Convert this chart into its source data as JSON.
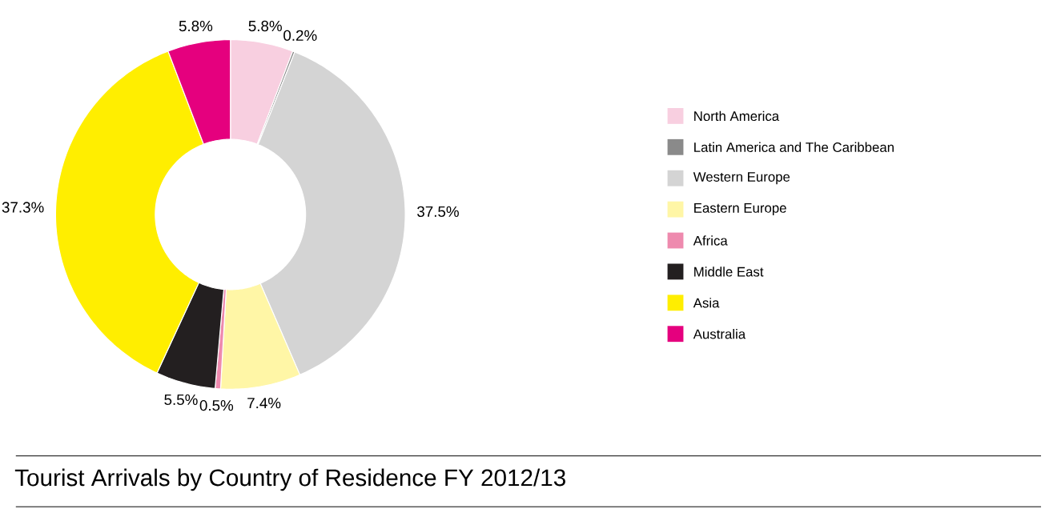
{
  "chart_data": {
    "type": "donut",
    "title": "Tourist Arrivals by Country of Residence FY 2012/13",
    "categories": [
      "North America",
      "Latin America and The Caribbean",
      "Western Europe",
      "Eastern Europe",
      "Africa",
      "Middle East",
      "Asia",
      "Australia"
    ],
    "values": [
      5.8,
      0.2,
      37.5,
      7.4,
      0.5,
      5.5,
      37.3,
      5.8
    ],
    "value_labels": [
      "5.8%",
      "0.2%",
      "37.5%",
      "7.4%",
      "0.5%",
      "5.5%",
      "37.3%",
      "5.8%"
    ],
    "colors": [
      "#f8cfe0",
      "#8a8a8a",
      "#d4d4d4",
      "#fff6a6",
      "#ee8aae",
      "#231f20",
      "#ffee00",
      "#e5007e"
    ],
    "legend": "right"
  }
}
